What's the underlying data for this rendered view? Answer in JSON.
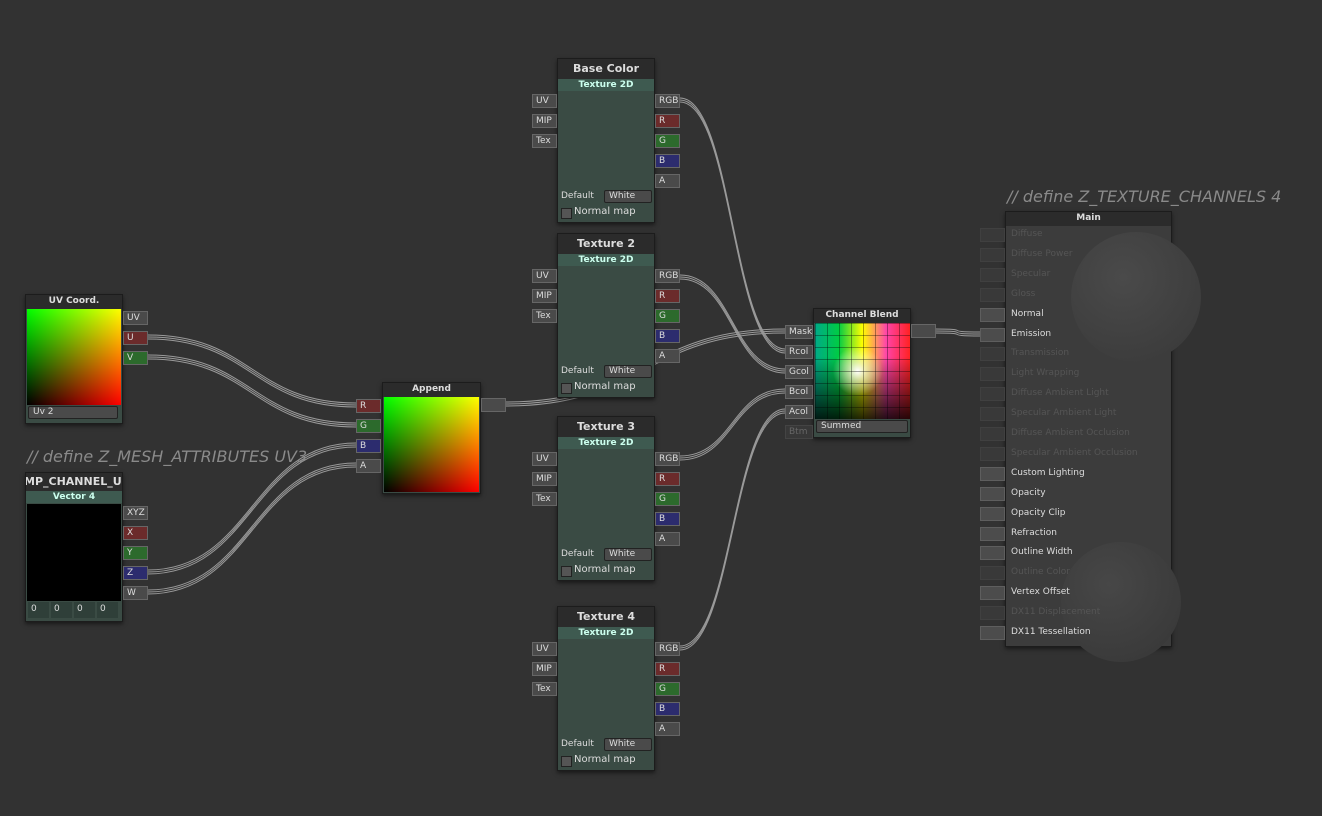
{
  "comments": [
    "// define Z_TEXTURE_CHANNELS 4",
    "// define Z_MESH_ATTRIBUTES UV3"
  ],
  "nodes": [
    {
      "title": "UV Coord.",
      "outputs": [
        "UV",
        "U",
        "V"
      ],
      "output_colors": [
        "#4a4a4a",
        "#6b2b2b",
        "#2c6a2c"
      ],
      "dropdown": "Uv 2"
    },
    {
      "title": "MP_CHANNEL_U",
      "subtitle": "Vector 4",
      "outputs": [
        "XYZ",
        "X",
        "Y",
        "Z",
        "W"
      ],
      "output_colors": [
        "#4a4a4a",
        "#6b2b2b",
        "#2c6a2c",
        "#2c2c6e",
        "#4a4a4a"
      ],
      "fields": [
        0,
        0,
        0,
        0
      ]
    },
    {
      "title": "Append",
      "inputs": [
        "R",
        "G",
        "B",
        "A"
      ],
      "input_colors": [
        "#6b2b2b",
        "#2c6a2c",
        "#2c2c6e",
        "#4a4a4a"
      ]
    },
    {
      "title": "Base Color",
      "subtitle": "Texture 2D",
      "inputs": [
        "UV",
        "MIP",
        "Tex"
      ],
      "outputs": [
        "RGB",
        "R",
        "G",
        "B",
        "A"
      ],
      "output_colors": [
        "#4a4a4a",
        "#6b2b2b",
        "#2c6a2c",
        "#2c2c6e",
        "#4a4a4a"
      ],
      "default_label": "Default",
      "dropdown": "White",
      "checkbox": "Normal map"
    },
    {
      "title": "Texture 2",
      "subtitle": "Texture 2D",
      "inputs": [
        "UV",
        "MIP",
        "Tex"
      ],
      "outputs": [
        "RGB",
        "R",
        "G",
        "B",
        "A"
      ],
      "output_colors": [
        "#4a4a4a",
        "#6b2b2b",
        "#2c6a2c",
        "#2c2c6e",
        "#4a4a4a"
      ],
      "default_label": "Default",
      "dropdown": "White",
      "checkbox": "Normal map"
    },
    {
      "title": "Texture 3",
      "subtitle": "Texture 2D",
      "inputs": [
        "UV",
        "MIP",
        "Tex"
      ],
      "outputs": [
        "RGB",
        "R",
        "G",
        "B",
        "A"
      ],
      "output_colors": [
        "#4a4a4a",
        "#6b2b2b",
        "#2c6a2c",
        "#2c2c6e",
        "#4a4a4a"
      ],
      "default_label": "Default",
      "dropdown": "White",
      "checkbox": "Normal map"
    },
    {
      "title": "Texture 4",
      "subtitle": "Texture 2D",
      "inputs": [
        "UV",
        "MIP",
        "Tex"
      ],
      "outputs": [
        "RGB",
        "R",
        "G",
        "B",
        "A"
      ],
      "output_colors": [
        "#4a4a4a",
        "#6b2b2b",
        "#2c6a2c",
        "#2c2c6e",
        "#4a4a4a"
      ],
      "default_label": "Default",
      "dropdown": "White",
      "checkbox": "Normal map"
    },
    {
      "title": "Channel Blend",
      "inputs": [
        "Mask",
        "Rcol",
        "Gcol",
        "Bcol",
        "Acol",
        "Btm"
      ],
      "dropdown": "Summed"
    },
    {
      "title": "Main",
      "main_inputs": [
        {
          "label": "Diffuse",
          "enabled": false
        },
        {
          "label": "Diffuse Power",
          "enabled": false
        },
        {
          "label": "Specular",
          "enabled": false
        },
        {
          "label": "Gloss",
          "enabled": false
        },
        {
          "label": "Normal",
          "enabled": true
        },
        {
          "label": "Emission",
          "enabled": true
        },
        {
          "label": "Transmission",
          "enabled": false
        },
        {
          "label": "Light Wrapping",
          "enabled": false
        },
        {
          "label": "Diffuse Ambient Light",
          "enabled": false
        },
        {
          "label": "Specular Ambient Light",
          "enabled": false
        },
        {
          "label": "Diffuse Ambient Occlusion",
          "enabled": false
        },
        {
          "label": "Specular Ambient Occlusion",
          "enabled": false
        },
        {
          "label": "Custom Lighting",
          "enabled": true
        },
        {
          "label": "Opacity",
          "enabled": true
        },
        {
          "label": "Opacity Clip",
          "enabled": true
        },
        {
          "label": "Refraction",
          "enabled": true
        },
        {
          "label": "Outline Width",
          "enabled": true
        },
        {
          "label": "Outline Color",
          "enabled": false
        },
        {
          "label": "Vertex Offset",
          "enabled": true
        },
        {
          "label": "DX11 Displacement",
          "enabled": false
        },
        {
          "label": "DX11 Tessellation",
          "enabled": true
        }
      ]
    }
  ]
}
